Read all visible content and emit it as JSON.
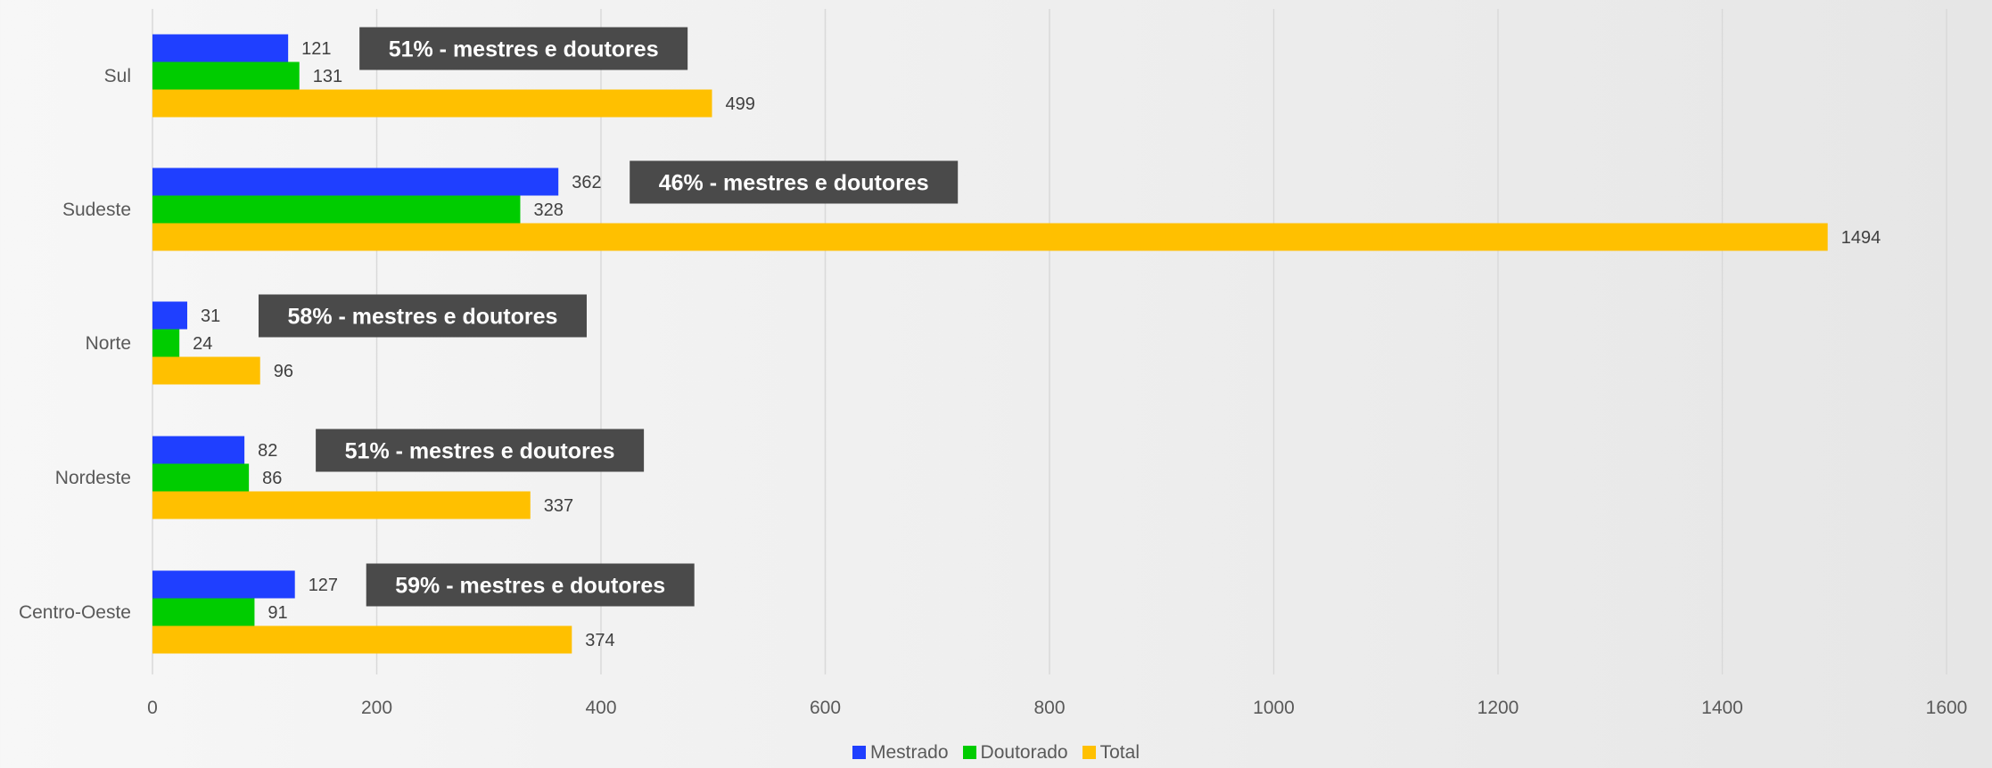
{
  "chart_data": {
    "type": "bar",
    "orientation": "horizontal",
    "categories": [
      "Sul",
      "Sudeste",
      "Norte",
      "Nordeste",
      "Centro-Oeste"
    ],
    "series": [
      {
        "name": "Mestrado",
        "color": "#1f3fff",
        "values": [
          121,
          362,
          31,
          82,
          127
        ]
      },
      {
        "name": "Doutorado",
        "color": "#00cc00",
        "values": [
          131,
          328,
          24,
          86,
          91
        ]
      },
      {
        "name": "Total",
        "color": "#ffc000",
        "values": [
          499,
          1494,
          96,
          337,
          374
        ]
      }
    ],
    "annotations": [
      "51% - mestres e doutores",
      "46% - mestres e doutores",
      "58% - mestres e doutores",
      "51% - mestres e doutores",
      "59% - mestres e doutores"
    ],
    "xlim": [
      0,
      1600
    ],
    "xticks": [
      0,
      200,
      400,
      600,
      800,
      1000,
      1200,
      1400,
      1600
    ],
    "grid": true,
    "legend_position": "bottom",
    "annotation_color": "#4a4a4a"
  }
}
